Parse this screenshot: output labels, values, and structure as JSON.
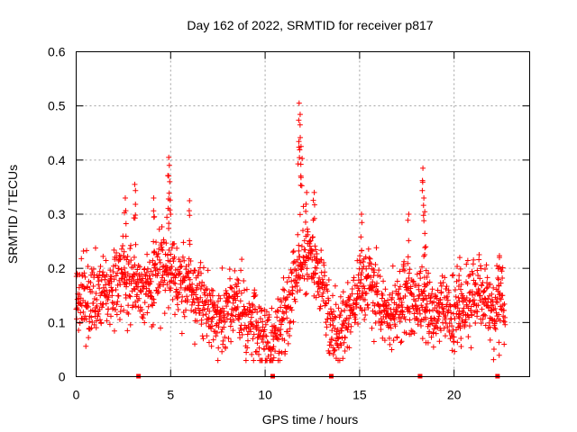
{
  "chart_data": {
    "type": "scatter",
    "title": "Day 162 of 2022, SRMTID for receiver p817",
    "xlabel": "GPS time / hours",
    "ylabel": "SRMTID / TECUs",
    "xlim": [
      0,
      24
    ],
    "ylim": [
      0,
      0.6
    ],
    "xticks": [
      0,
      5,
      10,
      15,
      20
    ],
    "yticks": [
      0,
      0.1,
      0.2,
      0.3,
      0.4,
      0.5,
      0.6
    ],
    "ytick_labels": [
      "0",
      "0.1",
      "0.2",
      "0.3",
      "0.4",
      "0.5",
      "0.6"
    ],
    "grid": true,
    "marker": "+",
    "color": "#ff0000",
    "series": [
      {
        "name": "SRMTID",
        "trend": [
          [
            0.0,
            0.15
          ],
          [
            0.5,
            0.15
          ],
          [
            1.0,
            0.14
          ],
          [
            1.5,
            0.15
          ],
          [
            2.0,
            0.17
          ],
          [
            2.5,
            0.19
          ],
          [
            3.0,
            0.17
          ],
          [
            3.5,
            0.15
          ],
          [
            4.0,
            0.17
          ],
          [
            4.5,
            0.19
          ],
          [
            5.0,
            0.19
          ],
          [
            5.5,
            0.18
          ],
          [
            6.0,
            0.17
          ],
          [
            6.5,
            0.15
          ],
          [
            7.0,
            0.12
          ],
          [
            7.5,
            0.1
          ],
          [
            8.0,
            0.12
          ],
          [
            8.5,
            0.14
          ],
          [
            9.0,
            0.1
          ],
          [
            9.5,
            0.1
          ],
          [
            10.0,
            0.07
          ],
          [
            10.5,
            0.06
          ],
          [
            11.0,
            0.1
          ],
          [
            11.5,
            0.18
          ],
          [
            12.0,
            0.22
          ],
          [
            12.5,
            0.21
          ],
          [
            13.0,
            0.17
          ],
          [
            13.5,
            0.09
          ],
          [
            14.0,
            0.09
          ],
          [
            14.5,
            0.12
          ],
          [
            15.0,
            0.17
          ],
          [
            15.5,
            0.18
          ],
          [
            16.0,
            0.14
          ],
          [
            16.5,
            0.11
          ],
          [
            17.0,
            0.13
          ],
          [
            17.5,
            0.15
          ],
          [
            18.0,
            0.14
          ],
          [
            18.5,
            0.14
          ],
          [
            19.0,
            0.11
          ],
          [
            19.5,
            0.13
          ],
          [
            20.0,
            0.11
          ],
          [
            20.5,
            0.13
          ],
          [
            21.0,
            0.15
          ],
          [
            21.5,
            0.15
          ],
          [
            22.0,
            0.12
          ],
          [
            22.5,
            0.15
          ],
          [
            22.7,
            0.13
          ]
        ],
        "peaks": [
          [
            2.6,
            0.33
          ],
          [
            3.1,
            0.355
          ],
          [
            4.1,
            0.33
          ],
          [
            4.9,
            0.405
          ],
          [
            4.95,
            0.36
          ],
          [
            6.0,
            0.325
          ],
          [
            11.8,
            0.505
          ],
          [
            11.85,
            0.465
          ],
          [
            11.9,
            0.425
          ],
          [
            12.2,
            0.34
          ],
          [
            12.6,
            0.34
          ],
          [
            15.1,
            0.3
          ],
          [
            17.6,
            0.3
          ],
          [
            18.35,
            0.385
          ],
          [
            18.4,
            0.33
          ],
          [
            18.5,
            0.24
          ],
          [
            20.3,
            0.22
          ],
          [
            22.4,
            0.22
          ]
        ]
      }
    ],
    "gap_markers": [
      3.3,
      10.4,
      13.5,
      18.2,
      22.3
    ]
  }
}
